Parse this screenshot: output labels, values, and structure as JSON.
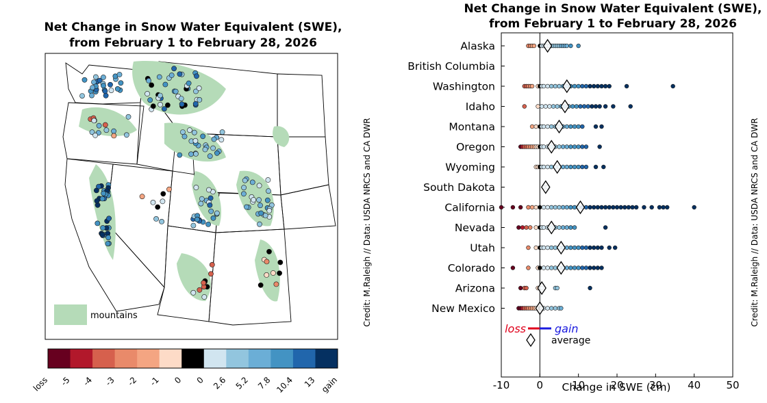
{
  "map_panel": {
    "title_line1": "Net Change in Snow Water Equivalent (SWE),",
    "title_line2": "from February 1 to February 28, 2026",
    "legend_label": "mountains",
    "credit": "Credit: M.Raleigh // Data: USDA NRCS and CA DWR",
    "colorbar": {
      "tick_labels": [
        "loss",
        "-5",
        "-4",
        "-3",
        "-2",
        "-1",
        "0",
        "0",
        "2.6",
        "5.2",
        "7.8",
        "10.4",
        "13",
        "gain"
      ],
      "colors": [
        "#67001f",
        "#b2182b",
        "#d6604d",
        "#e98a6a",
        "#f4a582",
        "#fddbc7",
        "#000000",
        "#d1e5f0",
        "#92c5de",
        "#6baed6",
        "#4393c3",
        "#2166ac",
        "#053061"
      ]
    },
    "colors": {
      "mountains": "#b5dbb8"
    }
  },
  "chart_data": {
    "type": "scatter",
    "title_line1": "Net Change in Snow Water Equivalent (SWE),",
    "title_line2": "from February 1 to February 28, 2026",
    "xlabel": "Change in SWE (cm)",
    "xlim": [
      -10,
      50
    ],
    "xticks": [
      "-10",
      "0",
      "10",
      "20",
      "30",
      "40",
      "50"
    ],
    "categories": [
      "Alaska",
      "British Columbia",
      "Washington",
      "Idaho",
      "Montana",
      "Oregon",
      "Wyoming",
      "South Dakota",
      "California",
      "Nevada",
      "Utah",
      "Colorado",
      "Arizona",
      "New Mexico"
    ],
    "averages": [
      2,
      null,
      7,
      6.5,
      5,
      3,
      4.5,
      1.5,
      10.5,
      3,
      5.5,
      5.5,
      0.5,
      0
    ],
    "points": [
      [
        -3,
        -2.5,
        -2,
        -1.5,
        0,
        0.5,
        1,
        1.5,
        2,
        2.5,
        3,
        3.5,
        4,
        4.5,
        5,
        5.5,
        6,
        6.5,
        7,
        8,
        10
      ],
      [],
      [
        -4,
        -3.5,
        -3,
        -2.5,
        -2,
        -0.5,
        0,
        0.5,
        1,
        2,
        3,
        4,
        5,
        6,
        7,
        8,
        9,
        10,
        11,
        12,
        13,
        14,
        15,
        16,
        17,
        18,
        22.5,
        34.5
      ],
      [
        -4,
        -0.5,
        0.5,
        1.5,
        2.5,
        3.5,
        4.5,
        5.5,
        6.5,
        7.5,
        8.5,
        9.5,
        10.5,
        11.5,
        12.5,
        13.5,
        14.5,
        15.5,
        17,
        19,
        23.5
      ],
      [
        -2,
        -1,
        0,
        0.5,
        1,
        2,
        3,
        4,
        5,
        6,
        7,
        8,
        9,
        10,
        11,
        14.5,
        16
      ],
      [
        -5,
        -4.5,
        -4,
        -3.5,
        -3,
        -2.5,
        -2,
        -1.5,
        -1,
        -0.5,
        0,
        0.5,
        1,
        2,
        3,
        4,
        5,
        6,
        7,
        8,
        9,
        10,
        11,
        12,
        15.5
      ],
      [
        -1,
        -0.5,
        0,
        0.5,
        1,
        2,
        3,
        4,
        5,
        6,
        7,
        8,
        9,
        10,
        11,
        12,
        14.5,
        16.5
      ],
      [
        1,
        1.5,
        2
      ],
      [
        -10,
        -7,
        -5,
        -3,
        -2,
        -1,
        0,
        1,
        2,
        3,
        4,
        5,
        6,
        7,
        8,
        9,
        10,
        11,
        12,
        13,
        14,
        15,
        16,
        17,
        18,
        19,
        20,
        21,
        22,
        23,
        24,
        25,
        27,
        29,
        31,
        32,
        33,
        40
      ],
      [
        -5.5,
        -4.5,
        -3.5,
        -2.5,
        -1,
        0,
        0.5,
        1,
        2,
        3,
        4,
        5,
        6,
        7,
        8,
        9,
        17
      ],
      [
        -3,
        -1,
        0,
        0.5,
        1,
        2,
        3,
        4,
        5,
        6,
        7,
        8,
        9,
        10,
        11,
        12,
        13,
        14,
        15,
        16,
        18,
        19.5
      ],
      [
        -7,
        -3,
        -0.5,
        0,
        1,
        2,
        3,
        4,
        5,
        6,
        7,
        8,
        9,
        10,
        11,
        12,
        13,
        14,
        15,
        16
      ],
      [
        -5,
        -4,
        -3.5,
        -0.5,
        0,
        0.5,
        4,
        4.5,
        13
      ],
      [
        -5.5,
        -5,
        -4.5,
        -4,
        -3.5,
        -3,
        -2.5,
        -2,
        -1.5,
        -1,
        -0.5,
        0,
        0.5,
        1,
        2,
        3,
        4,
        5,
        5.5
      ]
    ],
    "legend": {
      "loss": "loss",
      "gain": "gain",
      "average": "average",
      "placement": "bottom-left"
    },
    "credit": "Credit: M.Raleigh // Data: USDA NRCS and CA DWR"
  }
}
